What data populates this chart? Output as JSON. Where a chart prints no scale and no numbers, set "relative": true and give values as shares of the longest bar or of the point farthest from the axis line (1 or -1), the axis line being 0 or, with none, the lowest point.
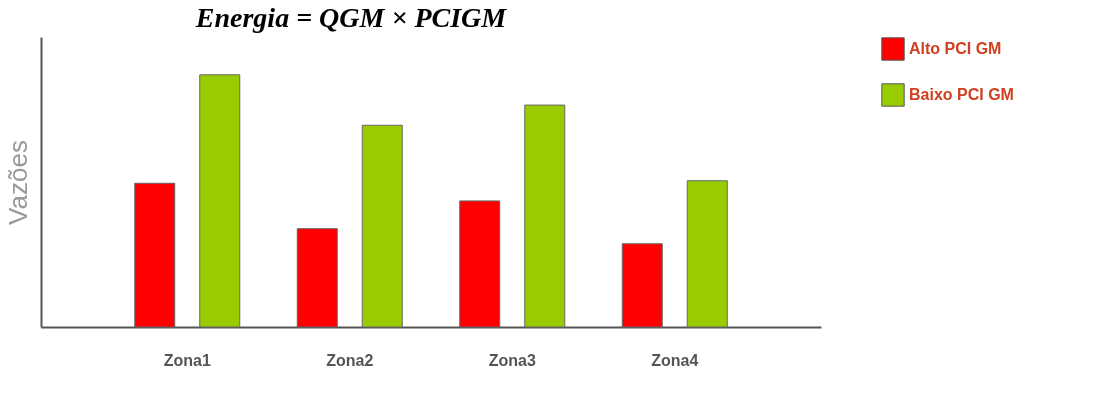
{
  "chart_data": {
    "type": "bar",
    "title": "Energia = QGM × PCIGM",
    "ylabel": "Vazões",
    "relative": true,
    "categories": [
      "Zona1",
      "Zona2",
      "Zona3",
      "Zona4"
    ],
    "series": [
      {
        "name": "Alto PCI GM",
        "color": "#ff0000",
        "values": [
          0.57,
          0.39,
          0.5,
          0.33
        ]
      },
      {
        "name": "Baixo PCI GM",
        "color": "#99cc00",
        "values": [
          1,
          0.8,
          0.88,
          0.58
        ]
      }
    ],
    "legend": "right",
    "grid": false
  }
}
